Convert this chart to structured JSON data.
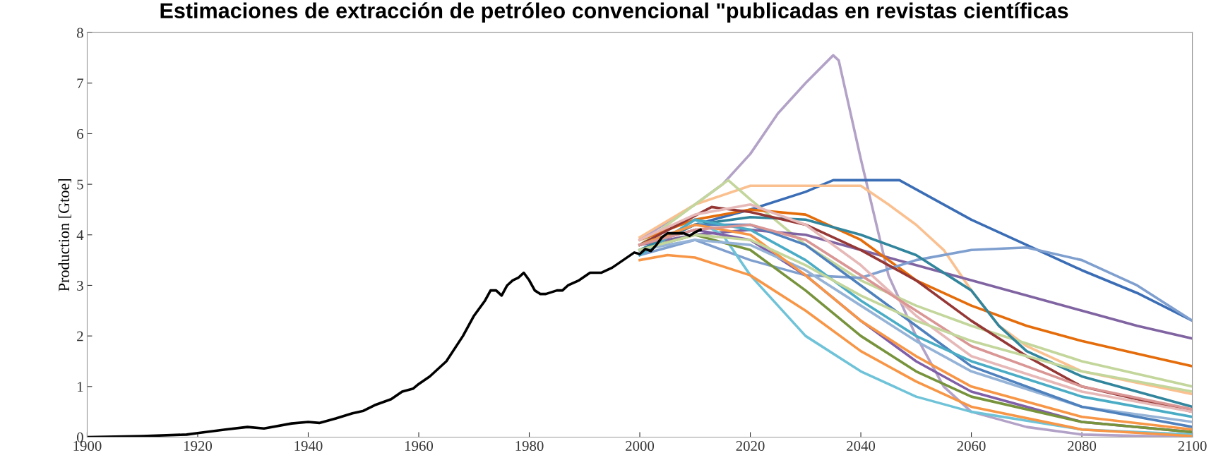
{
  "chart_data": {
    "type": "line",
    "title": "Estimaciones de extracción de petróleo convencional \"publicadas en revistas científicas",
    "ylabel": "Production [Gtoe]",
    "xlim": [
      1900,
      2100
    ],
    "xticks": [
      1900,
      1920,
      1940,
      1960,
      1980,
      2000,
      2020,
      2040,
      2060,
      2080,
      2100
    ],
    "ylim": [
      0,
      8
    ],
    "yticks": [
      0,
      1,
      2,
      3,
      4,
      5,
      6,
      7,
      8
    ],
    "grid": false,
    "marker": "none",
    "line_style": "solid",
    "series": [
      {
        "color": "#b3a2c7",
        "x": [
          2000,
          2010,
          2015,
          2020,
          2025,
          2030,
          2035,
          2036,
          2040,
          2045,
          2050,
          2055,
          2060,
          2070,
          2080,
          2100
        ],
        "values": [
          3.9,
          4.6,
          5.0,
          5.6,
          6.4,
          7.0,
          7.55,
          7.45,
          5.5,
          3.2,
          2.0,
          1.0,
          0.5,
          0.2,
          0.05,
          0.0
        ]
      },
      {
        "color": "#3a6db5",
        "x": [
          2000,
          2010,
          2020,
          2030,
          2035,
          2047,
          2055,
          2060,
          2070,
          2080,
          2090,
          2100
        ],
        "values": [
          3.7,
          4.2,
          4.5,
          4.85,
          5.08,
          5.08,
          4.6,
          4.3,
          3.8,
          3.3,
          2.85,
          2.3
        ]
      },
      {
        "color": "#fac090",
        "x": [
          2000,
          2010,
          2020,
          2040,
          2045,
          2050,
          2055,
          2060,
          2065,
          2070,
          2080,
          2100
        ],
        "values": [
          3.95,
          4.6,
          4.97,
          4.97,
          4.6,
          4.2,
          3.7,
          2.9,
          2.2,
          1.8,
          1.3,
          0.85
        ]
      },
      {
        "color": "#c3d69b",
        "x": [
          2000,
          2010,
          2016,
          2020,
          2030,
          2040,
          2050,
          2060,
          2080,
          2100
        ],
        "values": [
          3.8,
          4.6,
          5.08,
          4.7,
          3.8,
          3.1,
          2.6,
          2.2,
          1.5,
          1.0
        ]
      },
      {
        "color": "#8064a2",
        "x": [
          2000,
          2010,
          2020,
          2030,
          2040,
          2050,
          2060,
          2070,
          2080,
          2090,
          2100
        ],
        "values": [
          3.8,
          4.0,
          4.1,
          4.0,
          3.7,
          3.4,
          3.1,
          2.8,
          2.5,
          2.2,
          1.95
        ]
      },
      {
        "color": "#e46c0a",
        "x": [
          2000,
          2010,
          2020,
          2030,
          2040,
          2050,
          2060,
          2070,
          2080,
          2090,
          2100
        ],
        "values": [
          3.9,
          4.3,
          4.5,
          4.4,
          3.9,
          3.1,
          2.6,
          2.2,
          1.9,
          1.65,
          1.4
        ]
      },
      {
        "color": "#7f9fcf",
        "x": [
          2000,
          2010,
          2020,
          2030,
          2040,
          2050,
          2060,
          2070,
          2080,
          2090,
          2100
        ],
        "values": [
          3.6,
          3.9,
          3.5,
          3.2,
          3.15,
          3.5,
          3.7,
          3.75,
          3.5,
          3.0,
          2.3
        ]
      },
      {
        "color": "#31859c",
        "x": [
          2000,
          2010,
          2020,
          2030,
          2040,
          2050,
          2060,
          2065,
          2070,
          2080,
          2100
        ],
        "values": [
          3.7,
          4.2,
          4.35,
          4.3,
          4.0,
          3.6,
          2.9,
          2.2,
          1.7,
          1.2,
          0.6
        ]
      },
      {
        "color": "#953735",
        "x": [
          2000,
          2013,
          2020,
          2030,
          2040,
          2050,
          2060,
          2070,
          2080,
          2100
        ],
        "values": [
          3.8,
          4.55,
          4.45,
          4.2,
          3.7,
          3.1,
          2.3,
          1.6,
          1.0,
          0.5
        ]
      },
      {
        "color": "#6fc3d8",
        "x": [
          2000,
          2010,
          2015,
          2020,
          2030,
          2040,
          2050,
          2060,
          2080,
          2100
        ],
        "values": [
          3.6,
          4.3,
          4.0,
          3.2,
          2.0,
          1.3,
          0.8,
          0.5,
          0.15,
          0.05
        ]
      },
      {
        "color": "#f79646",
        "x": [
          2000,
          2005,
          2010,
          2020,
          2030,
          2040,
          2050,
          2060,
          2080,
          2100
        ],
        "values": [
          3.5,
          3.6,
          3.55,
          3.2,
          2.5,
          1.7,
          1.1,
          0.6,
          0.15,
          0.02
        ]
      },
      {
        "color": "#7f5fa8",
        "x": [
          2000,
          2010,
          2020,
          2030,
          2040,
          2050,
          2060,
          2080,
          2100
        ],
        "values": [
          3.8,
          4.1,
          3.9,
          3.2,
          2.3,
          1.5,
          0.9,
          0.3,
          0.1
        ]
      },
      {
        "color": "#77933c",
        "x": [
          2000,
          2010,
          2020,
          2030,
          2040,
          2050,
          2060,
          2080,
          2100
        ],
        "values": [
          3.7,
          4.0,
          3.7,
          2.9,
          2.0,
          1.3,
          0.8,
          0.3,
          0.1
        ]
      },
      {
        "color": "#e6b9b8",
        "x": [
          2000,
          2010,
          2020,
          2030,
          2040,
          2050,
          2060,
          2080,
          2100
        ],
        "values": [
          3.9,
          4.4,
          4.6,
          4.2,
          3.4,
          2.4,
          1.6,
          0.9,
          0.5
        ]
      },
      {
        "color": "#95b3d7",
        "x": [
          2000,
          2010,
          2020,
          2030,
          2040,
          2050,
          2060,
          2080,
          2100
        ],
        "values": [
          3.7,
          3.9,
          3.8,
          3.3,
          2.6,
          1.9,
          1.3,
          0.6,
          0.3
        ]
      },
      {
        "color": "#4f81bd",
        "x": [
          2000,
          2010,
          2020,
          2030,
          2040,
          2050,
          2060,
          2080,
          2100
        ],
        "values": [
          3.8,
          4.2,
          4.2,
          3.8,
          3.0,
          2.2,
          1.4,
          0.6,
          0.2
        ]
      },
      {
        "color": "#4bacc6",
        "x": [
          2000,
          2010,
          2020,
          2030,
          2040,
          2050,
          2060,
          2080,
          2100
        ],
        "values": [
          3.6,
          4.3,
          4.1,
          3.5,
          2.7,
          2.0,
          1.5,
          0.8,
          0.4
        ]
      },
      {
        "color": "#f79646",
        "x": [
          2000,
          2010,
          2020,
          2030,
          2040,
          2050,
          2060,
          2080,
          2100
        ],
        "values": [
          3.8,
          4.2,
          4.0,
          3.2,
          2.3,
          1.6,
          1.0,
          0.4,
          0.15
        ]
      },
      {
        "color": "#d99694",
        "x": [
          2000,
          2010,
          2020,
          2030,
          2040,
          2050,
          2060,
          2080,
          2100
        ],
        "values": [
          3.8,
          4.1,
          4.2,
          3.9,
          3.2,
          2.5,
          1.8,
          1.0,
          0.55
        ]
      },
      {
        "color": "#c3d69b",
        "x": [
          2000,
          2010,
          2020,
          2030,
          2040,
          2050,
          2060,
          2080,
          2100
        ],
        "values": [
          3.7,
          4.0,
          3.9,
          3.4,
          2.8,
          2.3,
          1.9,
          1.3,
          0.9
        ]
      },
      {
        "color": "#000000",
        "x": [
          1900,
          1910,
          1918,
          1920,
          1925,
          1929,
          1932,
          1937,
          1940,
          1942,
          1945,
          1948,
          1950,
          1952,
          1955,
          1957,
          1959,
          1960,
          1962,
          1965,
          1968,
          1970,
          1972,
          1973,
          1974,
          1975,
          1976,
          1977,
          1978,
          1979,
          1980,
          1981,
          1982,
          1983,
          1985,
          1986,
          1987,
          1989,
          1991,
          1993,
          1995,
          1997,
          1999,
          2000,
          2001,
          2002,
          2003,
          2004,
          2005,
          2006,
          2008,
          2009,
          2010,
          2011
        ],
        "values": [
          0,
          0.02,
          0.05,
          0.08,
          0.15,
          0.2,
          0.17,
          0.27,
          0.3,
          0.28,
          0.37,
          0.47,
          0.52,
          0.63,
          0.75,
          0.9,
          0.96,
          1.05,
          1.2,
          1.5,
          2.0,
          2.4,
          2.7,
          2.9,
          2.9,
          2.8,
          3.0,
          3.1,
          3.15,
          3.25,
          3.1,
          2.9,
          2.83,
          2.83,
          2.9,
          2.9,
          3.0,
          3.1,
          3.25,
          3.25,
          3.35,
          3.5,
          3.65,
          3.62,
          3.72,
          3.68,
          3.8,
          3.95,
          4.03,
          4.03,
          4.03,
          3.98,
          4.05,
          4.1
        ]
      }
    ]
  }
}
